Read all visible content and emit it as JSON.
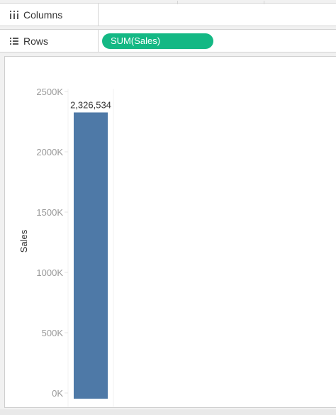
{
  "shelves": {
    "columns_label": "Columns",
    "columns_icon": "columns-icon",
    "rows_label": "Rows",
    "rows_icon": "rows-list-icon",
    "rows_pill": "SUM(Sales)",
    "pill_color": "#14b884"
  },
  "chart_data": {
    "type": "bar",
    "categories": [
      ""
    ],
    "values": [
      2326534
    ],
    "data_labels": [
      "2,326,534"
    ],
    "ylabel": "Sales",
    "xlabel": "",
    "ylim": [
      0,
      2500000
    ],
    "yticks": [
      0,
      500000,
      1000000,
      1500000,
      2000000,
      2500000
    ],
    "ytick_labels": [
      "0K",
      "500K",
      "1000K",
      "1500K",
      "2000K",
      "2500K"
    ],
    "bar_color": "#4e79a7",
    "grid": false
  }
}
